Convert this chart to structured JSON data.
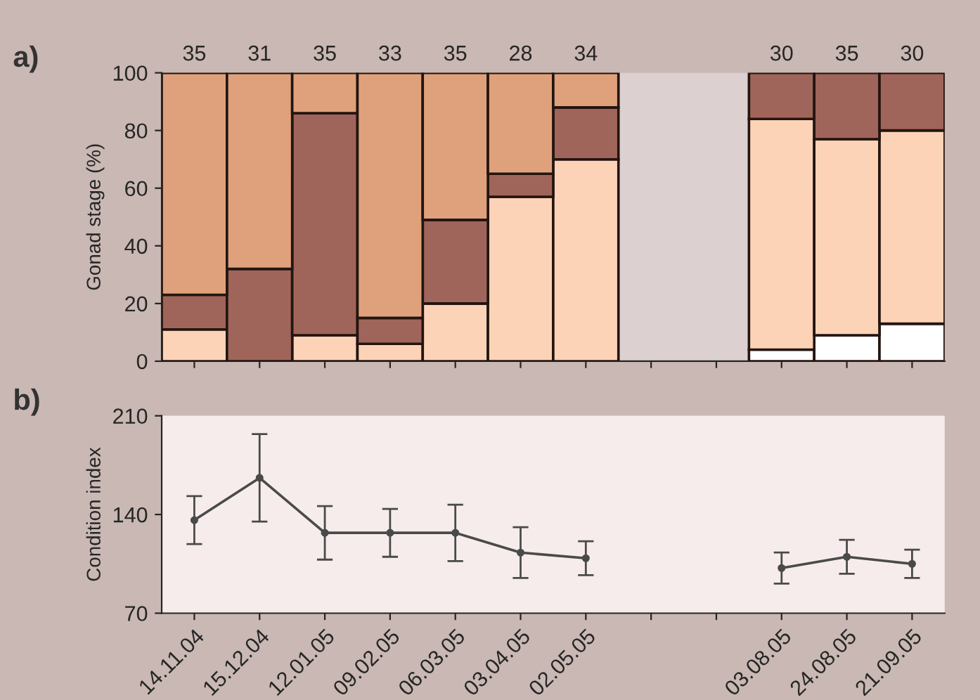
{
  "chart_data": [
    {
      "type": "bar",
      "stacked": true,
      "ylabel": "Gonad stage (%)",
      "categories": [
        "14.11.04",
        "15.12.04",
        "12.01.05",
        "09.02.05",
        "06.03.05",
        "03.04.05",
        "02.05.05",
        null,
        null,
        "03.08.05",
        "24.08.05",
        "21.09.05"
      ],
      "series": [
        {
          "color": "#ffffff",
          "values": [
            null,
            null,
            null,
            null,
            null,
            null,
            null,
            null,
            null,
            4,
            9,
            13
          ]
        },
        {
          "color": "#fdd3b8",
          "values": [
            11,
            null,
            9,
            6,
            20,
            57,
            70,
            null,
            null,
            80,
            68,
            67
          ]
        },
        {
          "color": "#a0655a",
          "values": [
            12,
            32,
            77,
            9,
            29,
            8,
            18,
            null,
            null,
            16,
            23,
            20
          ]
        },
        {
          "color": "#dfa17c",
          "values": [
            77,
            68,
            14,
            85,
            51,
            35,
            12,
            null,
            null,
            null,
            null,
            null
          ]
        }
      ],
      "ylim": [
        0,
        100
      ],
      "yticks": [
        0,
        20,
        40,
        60,
        80,
        100
      ],
      "tick_labels": "y",
      "bands": [
        {
          "axis": "x",
          "from": "02.05.05",
          "to": "03.08.05",
          "color": "#ddd0d0"
        }
      ],
      "annotations": [
        "a)",
        {
          "text": "35",
          "x": "14.11.04",
          "y": 100
        },
        {
          "text": "31",
          "x": "15.12.04",
          "y": 100
        },
        {
          "text": "35",
          "x": "12.01.05",
          "y": 100
        },
        {
          "text": "33",
          "x": "09.02.05",
          "y": 100
        },
        {
          "text": "35",
          "x": "06.03.05",
          "y": 100
        },
        {
          "text": "28",
          "x": "03.04.05",
          "y": 100
        },
        {
          "text": "34",
          "x": "02.05.05",
          "y": 100
        },
        {
          "text": "30",
          "x": "03.08.05",
          "y": 100
        },
        {
          "text": "35",
          "x": "24.08.05",
          "y": 100
        },
        {
          "text": "30",
          "x": "21.09.05",
          "y": 100
        }
      ]
    },
    {
      "type": "line",
      "ylabel": "Condition index",
      "marker": "circle",
      "categories": [
        "14.11.04",
        "15.12.04",
        "12.01.05",
        "09.02.05",
        "06.03.05",
        "03.04.05",
        "02.05.05",
        null,
        null,
        "03.08.05",
        "24.08.05",
        "21.09.05"
      ],
      "series": [
        {
          "color": "#4a4a4a",
          "values": [
            136,
            166,
            127,
            127,
            127,
            113,
            109,
            null,
            null,
            102,
            110,
            105
          ],
          "errors": [
            17,
            31,
            19,
            17,
            20,
            18,
            12,
            null,
            null,
            11,
            12,
            10
          ]
        }
      ],
      "ylim": [
        70,
        210
      ],
      "yticks": [
        70,
        140,
        210
      ],
      "annotations": [
        "b)"
      ]
    }
  ]
}
